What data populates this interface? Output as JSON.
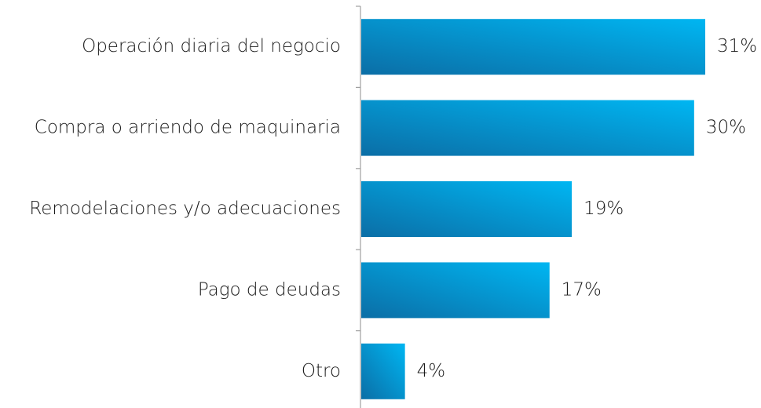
{
  "chart_data": {
    "type": "hbar",
    "categories": [
      "Operación diaria del negocio",
      "Compra o arriendo de maquinaria",
      "Remodelaciones y/o adecuaciones",
      "Pago de deudas",
      "Otro"
    ],
    "values": [
      31,
      30,
      19,
      17,
      4
    ],
    "value_labels": [
      "31%",
      "30%",
      "19%",
      "17%",
      "4%"
    ],
    "color": "#00b6f2"
  }
}
